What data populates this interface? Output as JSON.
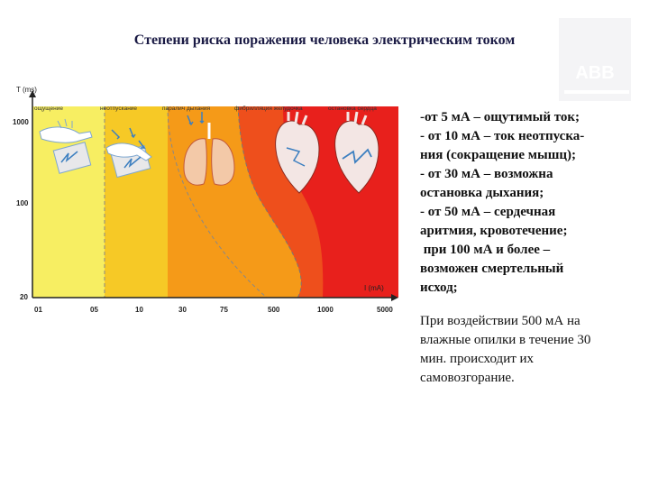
{
  "title": "Степени риска поражения человека электрическим током",
  "logo": {
    "letters": "ABB"
  },
  "chart": {
    "y_axis_label": "T (ms)",
    "x_axis_label": "I (mA)",
    "y_ticks": [
      "1000",
      "100",
      "20"
    ],
    "x_ticks": [
      "01",
      "05",
      "10",
      "30",
      "75",
      "500",
      "1000",
      "5000"
    ],
    "zones": [
      {
        "label": "ощущение",
        "color": "#f7ee62"
      },
      {
        "label": "неотпускание",
        "color": "#f6c926"
      },
      {
        "label": "паралич дыхания",
        "color": "#f59a18"
      },
      {
        "label": "фибрилляция желудочка",
        "color": "#ee4f1c"
      },
      {
        "label": "остановка сердца",
        "color": "#e8201c"
      }
    ],
    "icons": [
      "hand-touch-icon",
      "hand-grip-icon",
      "lungs-icon",
      "heart-icon",
      "heart-arrest-icon"
    ]
  },
  "side_text": {
    "items": [
      "-от 5 мА – ощутимый ток;",
      "- от 10 мА – ток неотпуска-\nния (сокращение мышц);",
      "- от 30 мА – возможна\nостановка дыхания;",
      "- от 50 мА – сердечная\nаритмия, кровотечение;",
      " при 100 мА и более –\nвозможен смертельный\nисход;"
    ],
    "note": "При воздействии 500 мА на\nвлажные опилки в течение 30\nмин. происходит их\nсамовозгорание."
  }
}
